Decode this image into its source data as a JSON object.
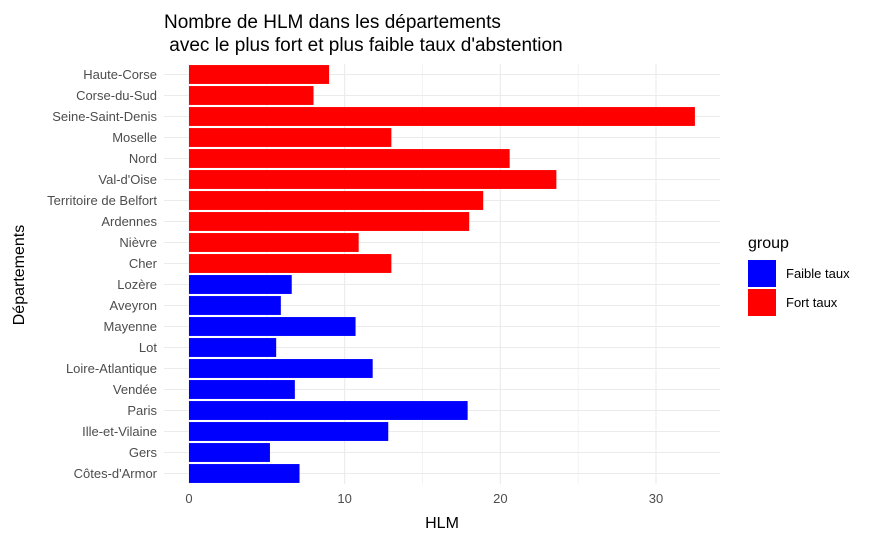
{
  "chart_data": {
    "type": "bar",
    "orientation": "horizontal",
    "title_lines": [
      "Nombre de HLM dans les départements",
      " avec le plus fort et plus faible taux d'abstention"
    ],
    "xlabel": "HLM",
    "ylabel": "Départements",
    "xlim": [
      0,
      34
    ],
    "x_ticks": [
      0,
      10,
      20,
      30
    ],
    "grid": true,
    "legend": {
      "title": "group",
      "placement": "right",
      "entries": [
        {
          "label": "Faible taux",
          "color": "#0000ff"
        },
        {
          "label": "Fort taux",
          "color": "#ff0000"
        }
      ]
    },
    "bars": [
      {
        "category": "Haute-Corse",
        "value": 9,
        "group": "Fort taux"
      },
      {
        "category": "Corse-du-Sud",
        "value": 8,
        "group": "Fort taux"
      },
      {
        "category": "Seine-Saint-Denis",
        "value": 32.5,
        "group": "Fort taux"
      },
      {
        "category": "Moselle",
        "value": 13,
        "group": "Fort taux"
      },
      {
        "category": "Nord",
        "value": 20.6,
        "group": "Fort taux"
      },
      {
        "category": "Val-d'Oise",
        "value": 23.6,
        "group": "Fort taux"
      },
      {
        "category": "Territoire de Belfort",
        "value": 18.9,
        "group": "Fort taux"
      },
      {
        "category": "Ardennes",
        "value": 18,
        "group": "Fort taux"
      },
      {
        "category": "Nièvre",
        "value": 10.9,
        "group": "Fort taux"
      },
      {
        "category": "Cher",
        "value": 13,
        "group": "Fort taux"
      },
      {
        "category": "Lozère",
        "value": 6.6,
        "group": "Faible taux"
      },
      {
        "category": "Aveyron",
        "value": 5.9,
        "group": "Faible taux"
      },
      {
        "category": "Mayenne",
        "value": 10.7,
        "group": "Faible taux"
      },
      {
        "category": "Lot",
        "value": 5.6,
        "group": "Faible taux"
      },
      {
        "category": "Loire-Atlantique",
        "value": 11.8,
        "group": "Faible taux"
      },
      {
        "category": "Vendée",
        "value": 6.8,
        "group": "Faible taux"
      },
      {
        "category": "Paris",
        "value": 17.9,
        "group": "Faible taux"
      },
      {
        "category": "Ille-et-Vilaine",
        "value": 12.8,
        "group": "Faible taux"
      },
      {
        "category": "Gers",
        "value": 5.2,
        "group": "Faible taux"
      },
      {
        "category": "Côtes-d'Armor",
        "value": 7.1,
        "group": "Faible taux"
      }
    ]
  }
}
